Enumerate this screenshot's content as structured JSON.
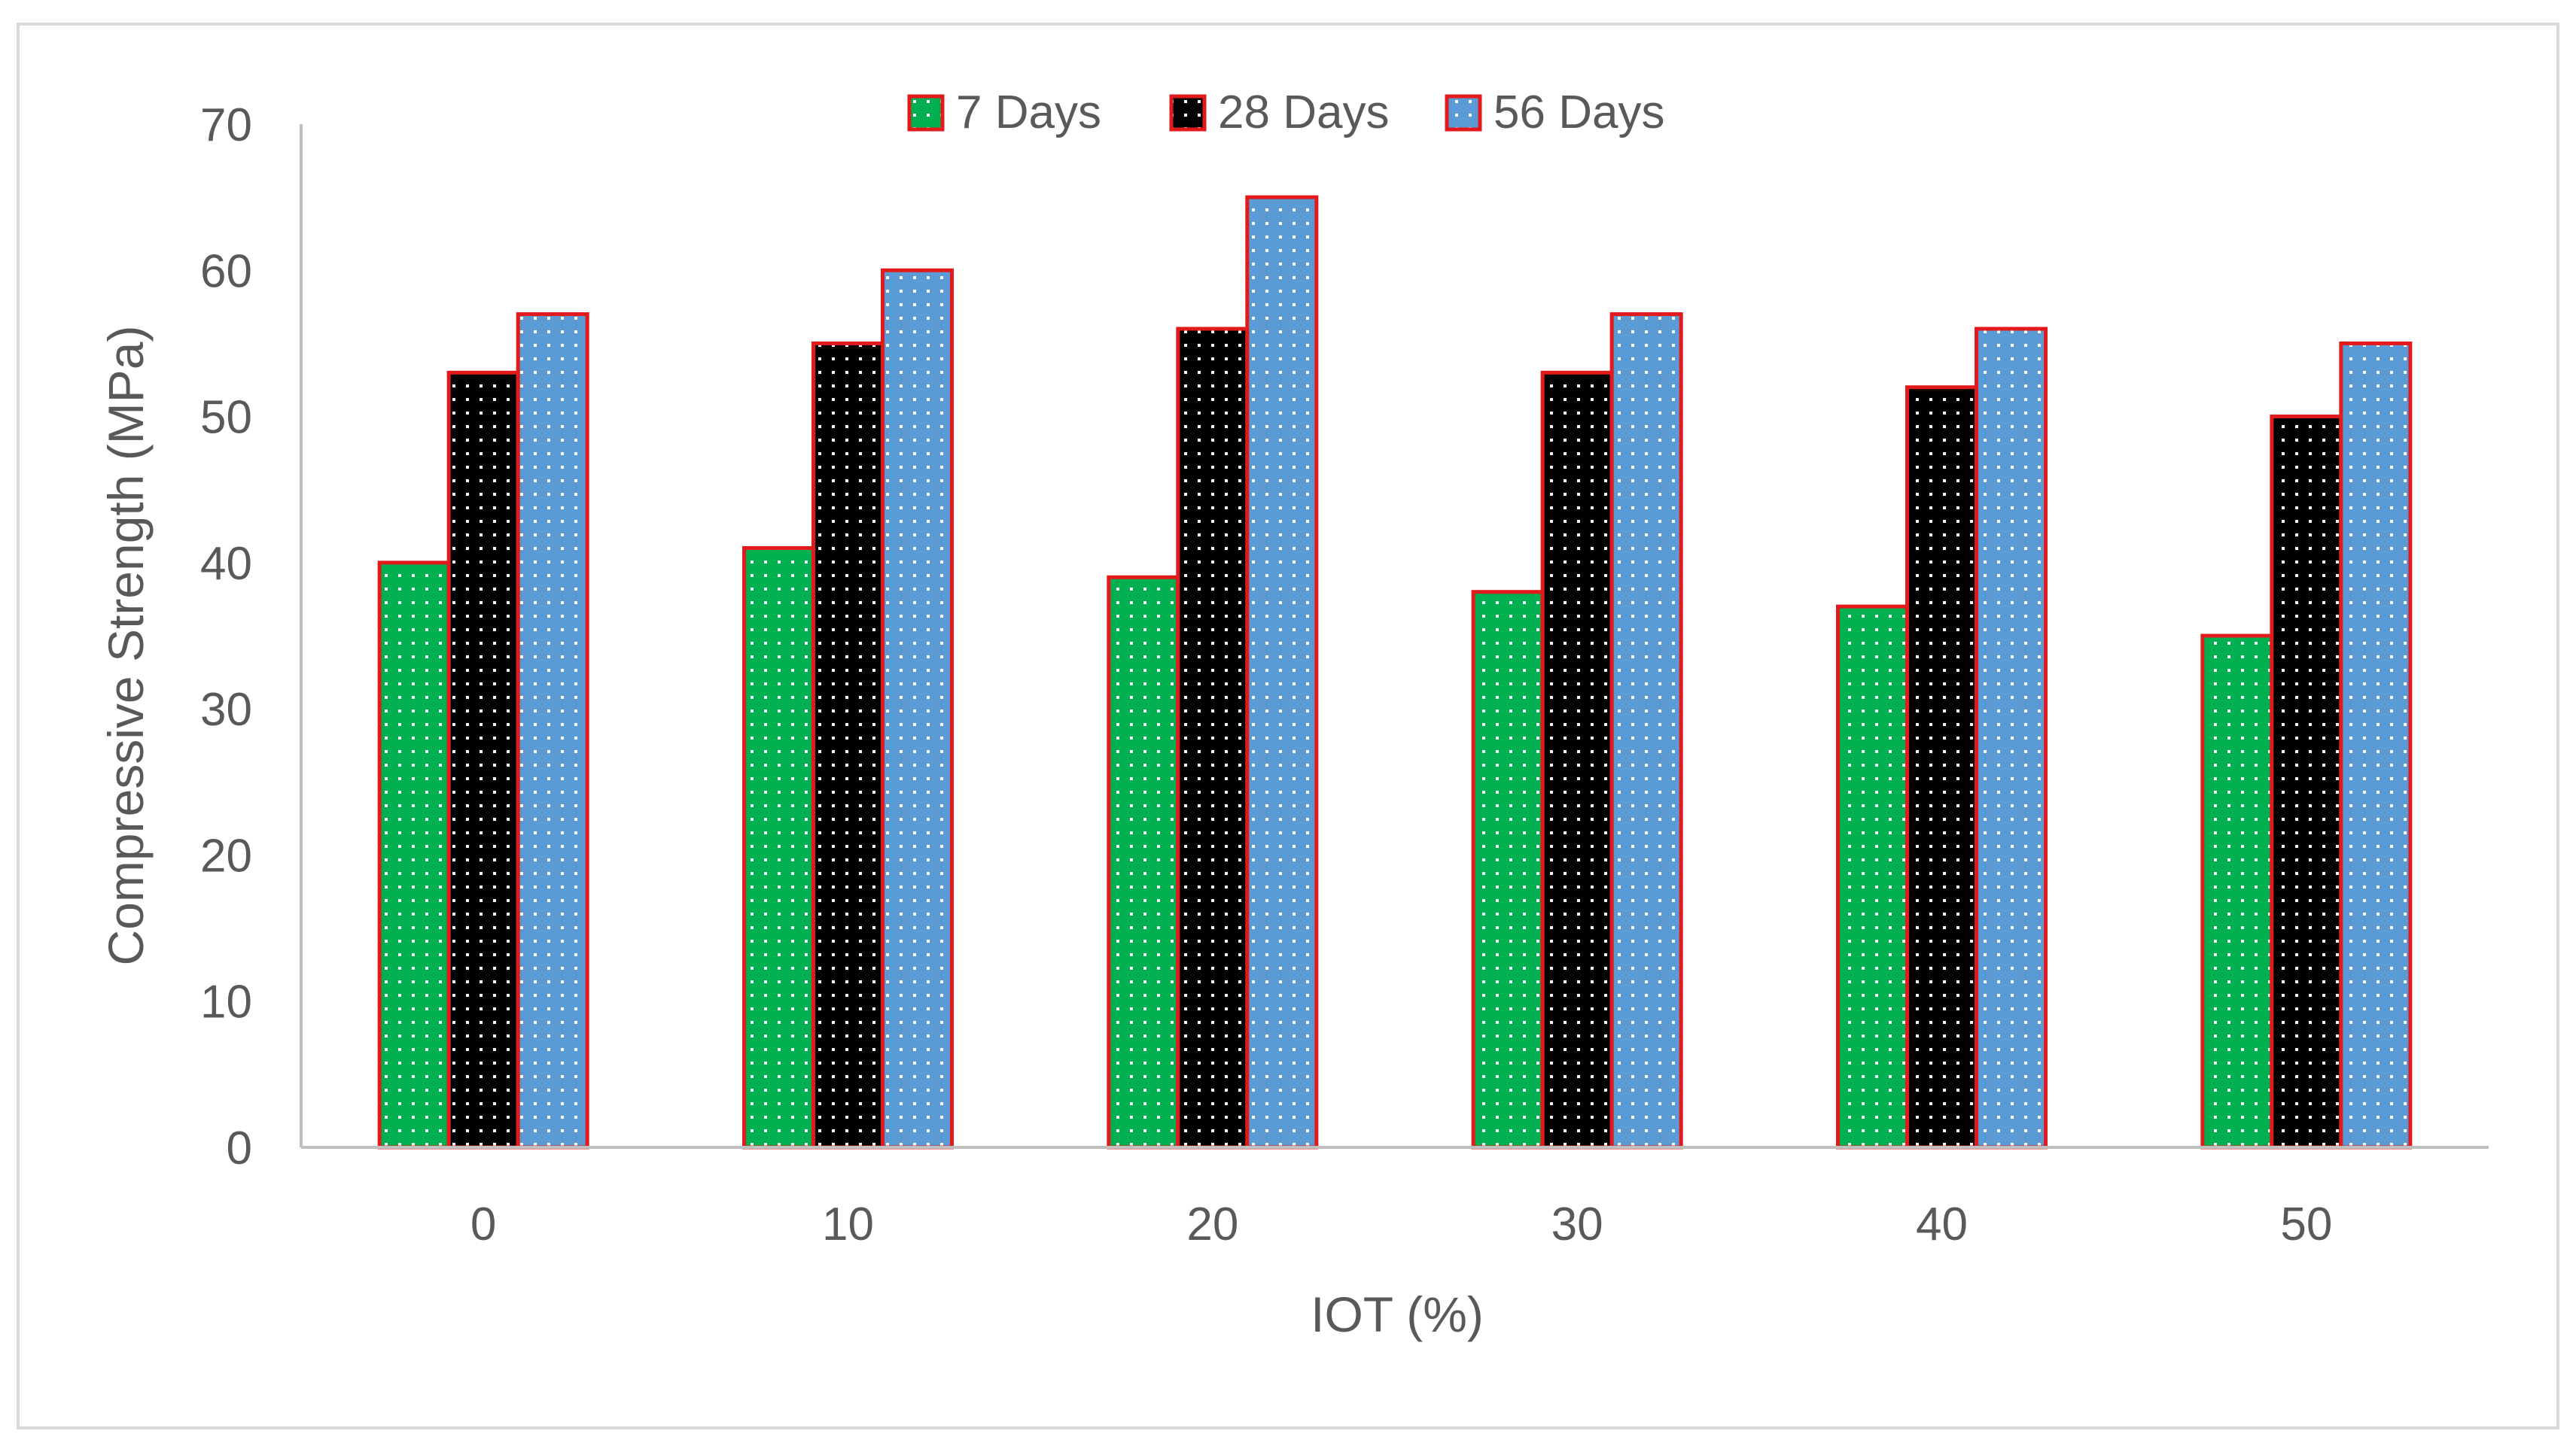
{
  "chart_data": {
    "type": "bar",
    "title": "",
    "xlabel": "IOT (%)",
    "ylabel": "Compressive Strength (MPa)",
    "categories": [
      "0",
      "10",
      "20",
      "30",
      "40",
      "50"
    ],
    "ylim": [
      0,
      70
    ],
    "yticks": [
      "0",
      "10",
      "20",
      "30",
      "40",
      "50",
      "60",
      "70"
    ],
    "grid": false,
    "legend_position": "top-center",
    "bar_border_color": "#E31A1C",
    "series": [
      {
        "name": "7 Days",
        "color": "#00B050",
        "values": [
          40,
          41,
          39,
          38,
          37,
          35
        ]
      },
      {
        "name": "28 Days",
        "color": "#000000",
        "values": [
          53,
          55,
          56,
          53,
          52,
          50
        ]
      },
      {
        "name": "56 Days",
        "color": "#5B9BD5",
        "values": [
          57,
          60,
          65,
          57,
          56,
          55
        ]
      }
    ]
  }
}
